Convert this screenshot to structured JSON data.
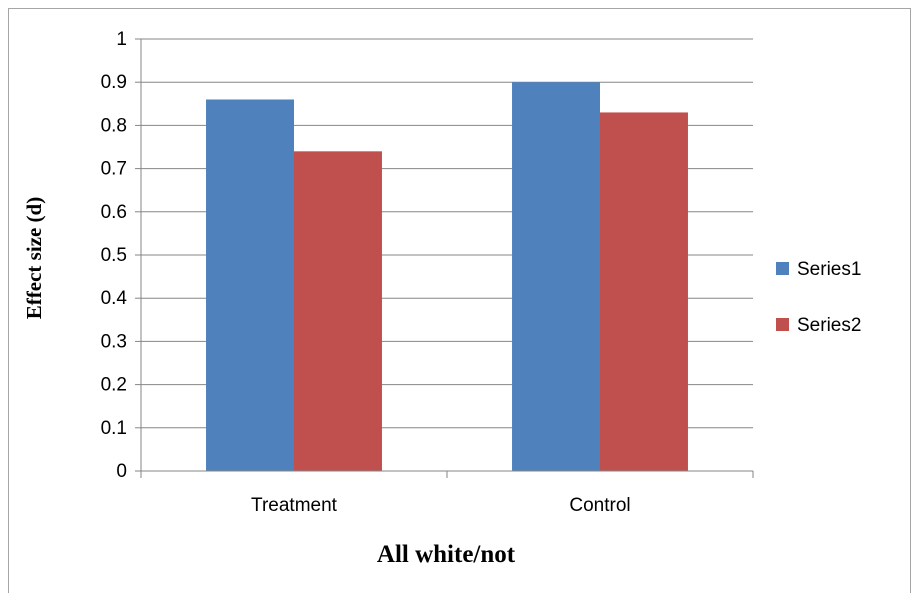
{
  "chart_data": {
    "type": "bar",
    "categories": [
      "Treatment",
      "Control"
    ],
    "series": [
      {
        "name": "Series1",
        "values": [
          0.86,
          0.9
        ],
        "color": "#4f81bd"
      },
      {
        "name": "Series2",
        "values": [
          0.74,
          0.83
        ],
        "color": "#c0504d"
      }
    ],
    "xlabel": "All white/not",
    "ylabel": "Effect size (d)",
    "ylim": [
      0,
      1
    ],
    "yticks": [
      "0",
      "0.1",
      "0.2",
      "0.3",
      "0.4",
      "0.5",
      "0.6",
      "0.7",
      "0.8",
      "0.9",
      "1"
    ],
    "grid": true,
    "legend": "right"
  }
}
